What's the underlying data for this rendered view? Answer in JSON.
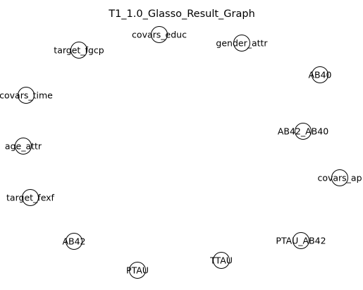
{
  "title": "T1_1.0_Glasso_Result_Graph",
  "colors": {
    "background": "#ffffff",
    "node_fill": "#ffffff",
    "node_stroke": "#000000",
    "text": "#000000"
  },
  "nodes": [
    {
      "id": "covars_educ",
      "label": "covars_educ"
    },
    {
      "id": "gender_attr",
      "label": "gender_attr"
    },
    {
      "id": "target_fgcp",
      "label": "target_fgcp"
    },
    {
      "id": "AB40",
      "label": "AB40"
    },
    {
      "id": "covars_time",
      "label": "covars_time"
    },
    {
      "id": "AB42_AB40",
      "label": "AB42_AB40"
    },
    {
      "id": "age_attr",
      "label": "age_attr"
    },
    {
      "id": "covars_ap",
      "label": "covars_ap"
    },
    {
      "id": "target_fexf",
      "label": "target_fexf"
    },
    {
      "id": "PTAU_AB42",
      "label": "PTAU_AB42"
    },
    {
      "id": "AB42",
      "label": "AB42"
    },
    {
      "id": "TTAU",
      "label": "TTAU"
    },
    {
      "id": "PTAU",
      "label": "PTAU"
    }
  ],
  "edges": []
}
